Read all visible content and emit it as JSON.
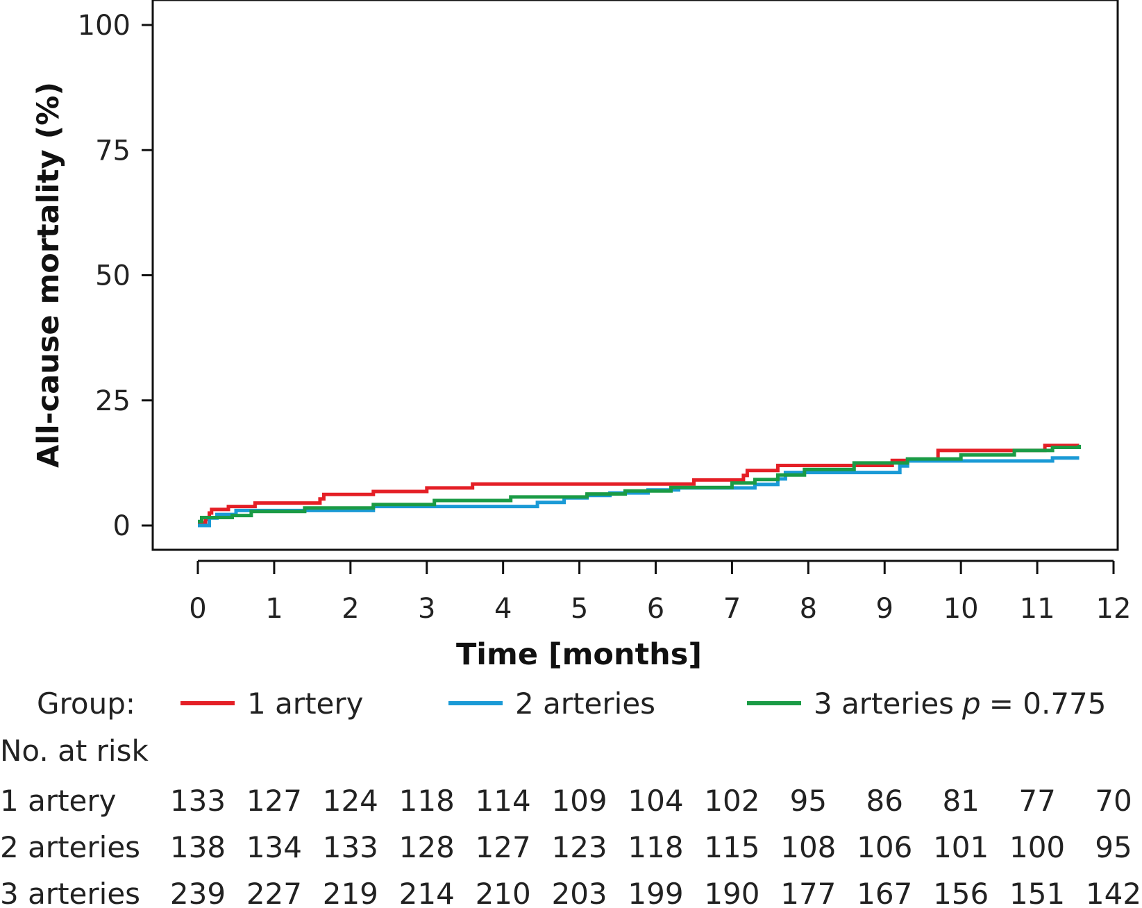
{
  "chart_data": {
    "type": "line",
    "step": true,
    "xlabel": "Time [months]",
    "ylabel": "All-cause mortality (%)",
    "xlim": [
      0,
      12
    ],
    "ylim": [
      0,
      100
    ],
    "xticks": [
      0,
      1,
      2,
      3,
      4,
      5,
      6,
      7,
      8,
      9,
      10,
      11,
      12
    ],
    "yticks": [
      0,
      25,
      50,
      75,
      100
    ],
    "grid": false,
    "legend": {
      "label": "Group:",
      "entries": [
        "1 artery",
        "2 arteries",
        "3 arteries"
      ],
      "p_label": "p",
      "p_value": "= 0.775"
    },
    "series": [
      {
        "name": "1 artery",
        "color": "#e41f26",
        "points": [
          [
            0,
            0.5
          ],
          [
            0.1,
            1.2
          ],
          [
            0.15,
            2.5
          ],
          [
            0.18,
            3.2
          ],
          [
            0.4,
            3.8
          ],
          [
            0.75,
            4.5
          ],
          [
            1.6,
            5.3
          ],
          [
            1.65,
            6.2
          ],
          [
            2.3,
            6.8
          ],
          [
            3.0,
            7.5
          ],
          [
            3.6,
            8.3
          ],
          [
            6.5,
            9.1
          ],
          [
            7.15,
            10.0
          ],
          [
            7.2,
            11.0
          ],
          [
            7.6,
            12.0
          ],
          [
            9.1,
            13.0
          ],
          [
            9.7,
            15.0
          ],
          [
            11.1,
            16.0
          ],
          [
            11.55,
            16.0
          ]
        ]
      },
      {
        "name": "2 arteries",
        "color": "#1a9ad6",
        "points": [
          [
            0,
            0
          ],
          [
            0.15,
            1.5
          ],
          [
            0.25,
            2.2
          ],
          [
            0.5,
            3.0
          ],
          [
            2.3,
            3.8
          ],
          [
            4.45,
            4.6
          ],
          [
            4.8,
            5.5
          ],
          [
            5.1,
            6.0
          ],
          [
            5.4,
            6.5
          ],
          [
            5.9,
            7.1
          ],
          [
            6.3,
            7.5
          ],
          [
            7.3,
            8.2
          ],
          [
            7.6,
            9.3
          ],
          [
            7.7,
            10.6
          ],
          [
            9.2,
            11.9
          ],
          [
            9.3,
            12.9
          ],
          [
            11.2,
            13.5
          ],
          [
            11.55,
            13.5
          ]
        ]
      },
      {
        "name": "3 arteries",
        "color": "#1a9b45",
        "points": [
          [
            0,
            0.8
          ],
          [
            0.05,
            1.6
          ],
          [
            0.45,
            2.0
          ],
          [
            0.7,
            2.8
          ],
          [
            1.4,
            3.5
          ],
          [
            2.3,
            4.2
          ],
          [
            3.1,
            5.0
          ],
          [
            4.1,
            5.7
          ],
          [
            5.1,
            6.3
          ],
          [
            5.6,
            6.9
          ],
          [
            6.2,
            7.6
          ],
          [
            7.0,
            8.5
          ],
          [
            7.3,
            9.2
          ],
          [
            7.6,
            10.1
          ],
          [
            7.95,
            11.2
          ],
          [
            8.6,
            12.5
          ],
          [
            9.3,
            13.3
          ],
          [
            10.0,
            14.1
          ],
          [
            10.7,
            15.0
          ],
          [
            11.2,
            15.6
          ],
          [
            11.55,
            16.1
          ]
        ]
      }
    ],
    "risk_table": {
      "title": "No. at risk",
      "rows": [
        {
          "label": "1 artery",
          "values": [
            "133",
            "127",
            "124",
            "118",
            "114",
            "109",
            "104",
            "102",
            "95",
            "86",
            "81",
            "77",
            "70"
          ]
        },
        {
          "label": "2 arteries",
          "values": [
            "138",
            "134",
            "133",
            "128",
            "127",
            "123",
            "118",
            "115",
            "108",
            "106",
            "101",
            "100",
            "95"
          ]
        },
        {
          "label": "3 arteries",
          "values": [
            "239",
            "227",
            "219",
            "214",
            "210",
            "203",
            "199",
            "190",
            "177",
            "167",
            "156",
            "151",
            "142"
          ]
        }
      ]
    }
  }
}
